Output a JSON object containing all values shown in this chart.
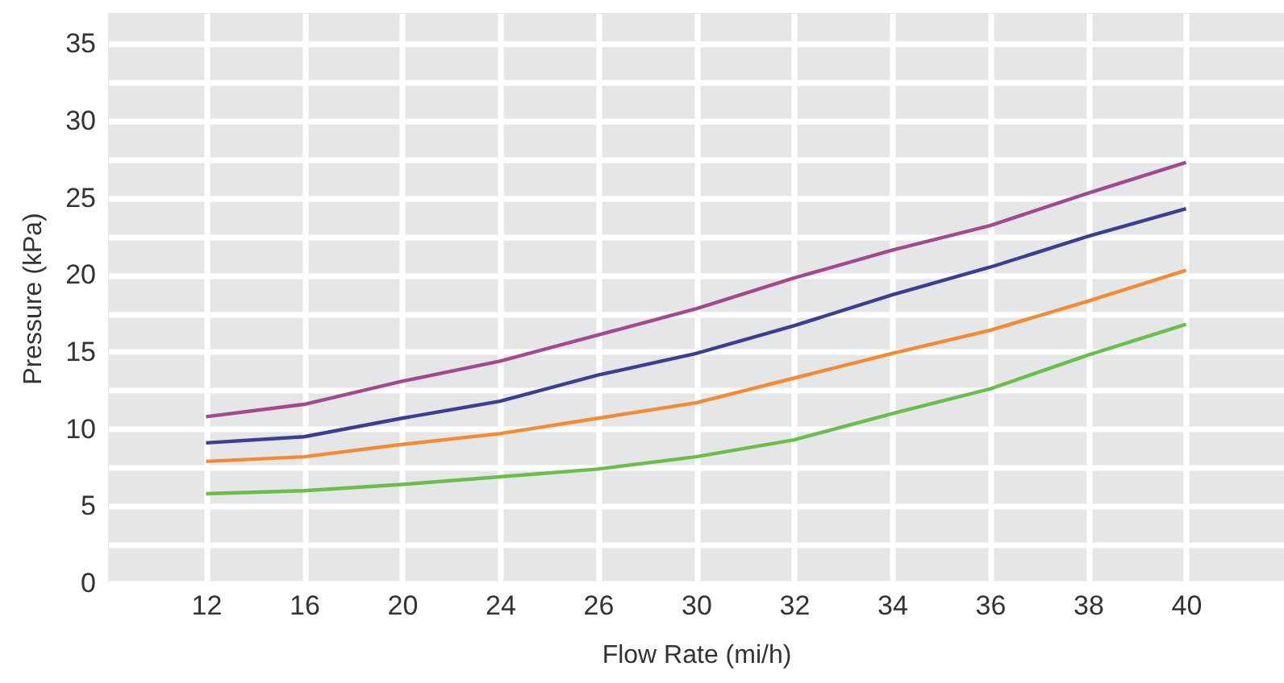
{
  "chart_data": {
    "type": "line",
    "xlabel": "Flow Rate (mi/h)",
    "ylabel": "Pressure (kPa)",
    "categories": [
      "12",
      "16",
      "20",
      "24",
      "26",
      "30",
      "32",
      "34",
      "36",
      "38",
      "40"
    ],
    "series": [
      {
        "color": "#a24a8c",
        "values": [
          10.8,
          11.6,
          13.1,
          14.4,
          16.1,
          17.8,
          19.8,
          21.6,
          23.2,
          25.3,
          27.3
        ]
      },
      {
        "color": "#3b3f94",
        "values": [
          9.1,
          9.5,
          10.7,
          11.8,
          13.5,
          14.9,
          16.7,
          18.7,
          20.5,
          22.5,
          24.3
        ]
      },
      {
        "color": "#f58a33",
        "values": [
          7.9,
          8.2,
          9.0,
          9.7,
          10.7,
          11.7,
          13.3,
          14.9,
          16.4,
          18.3,
          20.3
        ]
      },
      {
        "color": "#6abf4b",
        "values": [
          5.8,
          6.0,
          6.4,
          6.9,
          7.4,
          8.2,
          9.3,
          11.0,
          12.6,
          14.8,
          16.8
        ]
      }
    ],
    "ylim": [
      0,
      37
    ],
    "yticks": [
      0,
      {
        "value": 2.5,
        "label": null
      },
      5,
      {
        "value": 7.5,
        "label": null
      },
      10,
      {
        "value": 12.5,
        "label": null
      },
      15,
      {
        "value": 17.5,
        "label": null
      },
      20,
      {
        "value": 22.5,
        "label": null
      },
      25,
      {
        "value": 27.5,
        "label": null
      },
      30,
      {
        "value": 32.5,
        "label": null
      },
      35
    ],
    "grid": true,
    "marker": "none",
    "line_style": "solid"
  }
}
